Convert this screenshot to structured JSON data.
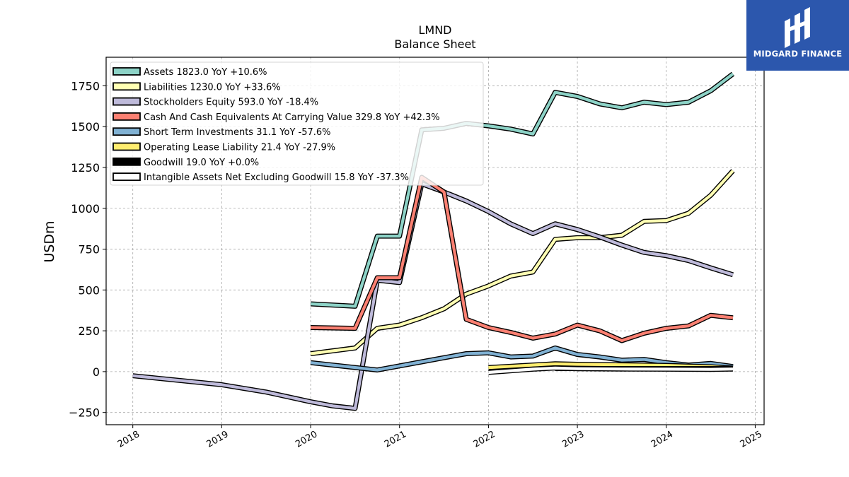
{
  "brand": {
    "name": "MIDGARD FINANCE",
    "bg": "#2c57ad"
  },
  "chart_data": {
    "type": "line",
    "title": "LMND",
    "subtitle": "Balance  Sheet",
    "ylabel": "USDm",
    "xlabel": "",
    "xlim": [
      2017.7,
      2025.1
    ],
    "ylim": [
      -325,
      1925
    ],
    "xticks": [
      2018,
      2019,
      2020,
      2021,
      2022,
      2023,
      2024,
      2025
    ],
    "yticks": [
      -250,
      0,
      250,
      500,
      750,
      1000,
      1250,
      1500,
      1750
    ],
    "grid": true,
    "legend_position": "top-left",
    "series": [
      {
        "name": "Assets",
        "label": "Assets  1823.0 YoY +10.6%",
        "color": "#8dd3c7",
        "points": [
          [
            2020.0,
            415
          ],
          [
            2020.5,
            400
          ],
          [
            2020.75,
            830
          ],
          [
            2021.0,
            830
          ],
          [
            2021.25,
            1480
          ],
          [
            2021.5,
            1490
          ],
          [
            2021.75,
            1520
          ],
          [
            2022.0,
            1505
          ],
          [
            2022.25,
            1485
          ],
          [
            2022.5,
            1455
          ],
          [
            2022.75,
            1710
          ],
          [
            2023.0,
            1685
          ],
          [
            2023.25,
            1640
          ],
          [
            2023.5,
            1615
          ],
          [
            2023.75,
            1650
          ],
          [
            2024.0,
            1635
          ],
          [
            2024.25,
            1650
          ],
          [
            2024.5,
            1720
          ],
          [
            2024.75,
            1823
          ]
        ]
      },
      {
        "name": "Liabilities",
        "label": "Liabilities  1230.0 YoY +33.6%",
        "color": "#ffffb3",
        "points": [
          [
            2020.0,
            110
          ],
          [
            2020.5,
            145
          ],
          [
            2020.75,
            265
          ],
          [
            2021.0,
            285
          ],
          [
            2021.25,
            330
          ],
          [
            2021.5,
            385
          ],
          [
            2021.75,
            475
          ],
          [
            2022.0,
            525
          ],
          [
            2022.25,
            585
          ],
          [
            2022.5,
            610
          ],
          [
            2022.75,
            810
          ],
          [
            2023.0,
            820
          ],
          [
            2023.25,
            820
          ],
          [
            2023.5,
            835
          ],
          [
            2023.75,
            920
          ],
          [
            2024.0,
            925
          ],
          [
            2024.25,
            970
          ],
          [
            2024.5,
            1080
          ],
          [
            2024.75,
            1230
          ]
        ]
      },
      {
        "name": "Stockholders Equity",
        "label": "Stockholders Equity  593.0 YoY -18.4%",
        "color": "#bebada",
        "points": [
          [
            2018.0,
            -25
          ],
          [
            2019.0,
            -80
          ],
          [
            2019.5,
            -125
          ],
          [
            2020.0,
            -185
          ],
          [
            2020.25,
            -210
          ],
          [
            2020.5,
            -225
          ],
          [
            2020.75,
            560
          ],
          [
            2021.0,
            545
          ],
          [
            2021.25,
            1150
          ],
          [
            2021.5,
            1100
          ],
          [
            2021.75,
            1045
          ],
          [
            2022.0,
            980
          ],
          [
            2022.25,
            905
          ],
          [
            2022.5,
            845
          ],
          [
            2022.75,
            905
          ],
          [
            2023.0,
            870
          ],
          [
            2023.25,
            825
          ],
          [
            2023.5,
            775
          ],
          [
            2023.75,
            730
          ],
          [
            2024.0,
            710
          ],
          [
            2024.25,
            680
          ],
          [
            2024.5,
            635
          ],
          [
            2024.75,
            593
          ]
        ]
      },
      {
        "name": "Cash And Cash Equivalents At Carrying Value",
        "label": "Cash And Cash Equivalents At Carrying Value  329.8 YoY +42.3%",
        "color": "#fb8072",
        "points": [
          [
            2020.0,
            270
          ],
          [
            2020.5,
            265
          ],
          [
            2020.75,
            575
          ],
          [
            2021.0,
            575
          ],
          [
            2021.25,
            1190
          ],
          [
            2021.5,
            1100
          ],
          [
            2021.75,
            320
          ],
          [
            2022.0,
            270
          ],
          [
            2022.25,
            240
          ],
          [
            2022.5,
            205
          ],
          [
            2022.75,
            230
          ],
          [
            2023.0,
            285
          ],
          [
            2023.25,
            250
          ],
          [
            2023.5,
            190
          ],
          [
            2023.75,
            235
          ],
          [
            2024.0,
            265
          ],
          [
            2024.25,
            280
          ],
          [
            2024.5,
            345
          ],
          [
            2024.75,
            329.8
          ]
        ]
      },
      {
        "name": "Short Term Investments",
        "label": "Short Term Investments  31.1 YoY -57.6%",
        "color": "#80b1d3",
        "points": [
          [
            2020.0,
            55
          ],
          [
            2020.5,
            25
          ],
          [
            2020.75,
            10
          ],
          [
            2021.0,
            35
          ],
          [
            2021.25,
            60
          ],
          [
            2021.5,
            85
          ],
          [
            2021.75,
            110
          ],
          [
            2022.0,
            115
          ],
          [
            2022.25,
            90
          ],
          [
            2022.5,
            95
          ],
          [
            2022.75,
            145
          ],
          [
            2023.0,
            105
          ],
          [
            2023.25,
            90
          ],
          [
            2023.5,
            70
          ],
          [
            2023.75,
            75
          ],
          [
            2024.0,
            55
          ],
          [
            2024.25,
            40
          ],
          [
            2024.5,
            50
          ],
          [
            2024.75,
            31.1
          ]
        ]
      },
      {
        "name": "Operating Lease Liability",
        "label": "Operating Lease Liability  21.4 YoY -27.9%",
        "color": "#ffed6f",
        "points": [
          [
            2022.0,
            25
          ],
          [
            2022.75,
            48
          ],
          [
            2023.0,
            45
          ],
          [
            2023.5,
            42
          ],
          [
            2024.0,
            38
          ],
          [
            2024.5,
            30
          ],
          [
            2024.75,
            21.4
          ]
        ]
      },
      {
        "name": "Goodwill",
        "label": "Goodwill  19.0 YoY +0.0%",
        "color": "#000000",
        "points": [
          [
            2022.75,
            19
          ],
          [
            2024.75,
            19
          ]
        ]
      },
      {
        "name": "Intangible Assets Net Excluding Goodwill",
        "label": "Intangible Assets Net Excluding Goodwill  15.8 YoY -37.3%",
        "color": "#ffffff",
        "points": [
          [
            2022.0,
            -5
          ],
          [
            2022.5,
            15
          ],
          [
            2022.75,
            22
          ],
          [
            2023.0,
            18
          ],
          [
            2023.5,
            16
          ],
          [
            2024.0,
            15
          ],
          [
            2024.5,
            14
          ],
          [
            2024.75,
            15.8
          ]
        ]
      }
    ]
  }
}
